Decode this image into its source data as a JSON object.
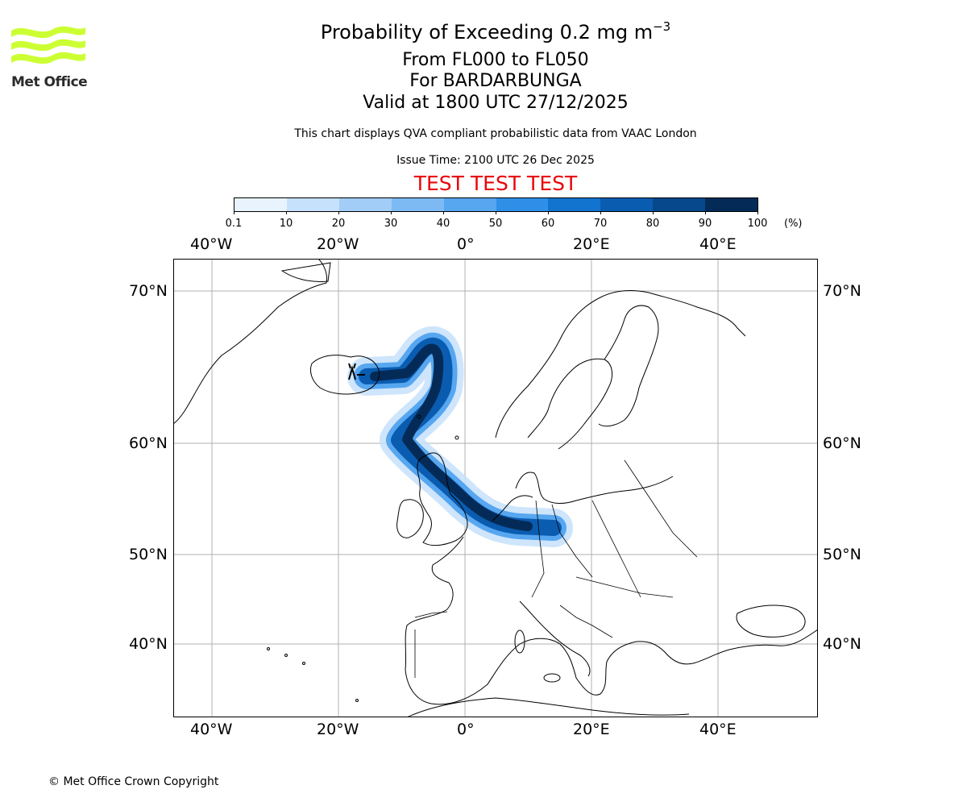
{
  "header": {
    "title_text": "Probability of Exceeding 0.2 mg m",
    "title_superscript": "−3",
    "flight_levels": "From FL000 to FL050",
    "volcano": "For BARDARBUNGA",
    "valid_time": "Valid at 1800 UTC 27/12/2025",
    "note": "This chart displays QVA compliant probabilistic data from VAAC London",
    "issue_time": "Issue Time: 2100 UTC 26 Dec 2025",
    "test_banner": "TEST TEST TEST"
  },
  "logo": {
    "text": "Met Office",
    "color": "#ccff33"
  },
  "colorbar": {
    "ticks": [
      "0.1",
      "10",
      "20",
      "30",
      "40",
      "50",
      "60",
      "70",
      "80",
      "90",
      "100"
    ],
    "unit": "(%)",
    "colors": [
      "#e8f3fe",
      "#c6e1fb",
      "#a2cdf7",
      "#7dbaf4",
      "#57a6f0",
      "#2f8fe8",
      "#1274cf",
      "#0a5cb0",
      "#07478c",
      "#042b57"
    ]
  },
  "map": {
    "lon_labels": [
      "40°W",
      "20°W",
      "0°",
      "20°E",
      "40°E"
    ],
    "lat_labels": [
      "70°N",
      "60°N",
      "50°N",
      "40°N"
    ],
    "gridline_color": "#b0b0b0",
    "coastline_color": "#000000"
  },
  "footer": {
    "copyright": "© Met Office Crown Copyright"
  }
}
